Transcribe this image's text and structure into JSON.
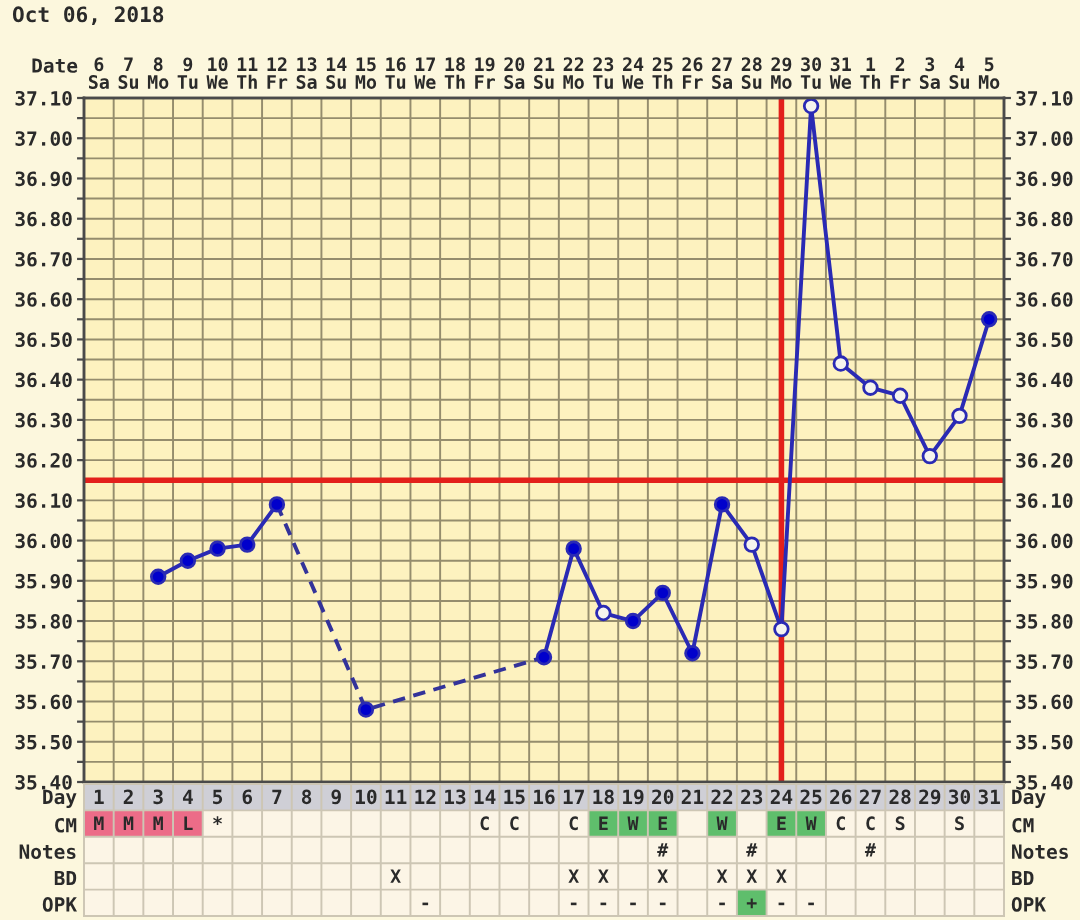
{
  "chart_data": [
    {
      "type": "line",
      "title": "Oct 06, 2018",
      "xlabel": "Date",
      "categories": [
        "6 Sa",
        "7 Su",
        "8 Mo",
        "9 Tu",
        "10 We",
        "11 Th",
        "12 Fr",
        "13 Sa",
        "14 Su",
        "15 Mo",
        "16 Tu",
        "17 We",
        "18 Th",
        "19 Fr",
        "20 Sa",
        "21 Su",
        "22 Mo",
        "23 Tu",
        "24 We",
        "25 Th",
        "26 Fr",
        "27 Sa",
        "28 Su",
        "29 Mo",
        "30 Tu",
        "31 We",
        "1 Th",
        "2 Fr",
        "3 Sa",
        "4 Su",
        "5 Mo"
      ],
      "series": [
        {
          "type": "line",
          "color": "#2a2ab4",
          "line_style": "solid",
          "marker": "circle",
          "values": [
            null,
            null,
            35.91,
            35.95,
            35.98,
            35.99,
            36.09,
            null,
            null,
            35.58,
            null,
            null,
            null,
            null,
            null,
            35.71,
            35.98,
            35.82,
            35.8,
            35.87,
            35.72,
            36.09,
            35.99,
            35.78,
            37.08,
            36.44,
            36.38,
            36.36,
            36.21,
            36.31,
            36.55
          ],
          "colors": [
            null,
            null,
            "#0000cc",
            "#0000cc",
            "#0000cc",
            "#0000cc",
            "#0000cc",
            null,
            null,
            "#0000cc",
            null,
            null,
            null,
            null,
            null,
            "#0000cc",
            "#0000cc",
            "#f6f4ee",
            "#0000cc",
            "#0000cc",
            "#0000cc",
            "#0000cc",
            "#f6f4ee",
            "#f6f4ee",
            "#f6f4ee",
            "#f6f4ee",
            "#f6f4ee",
            "#f6f4ee",
            "#f6f4ee",
            "#f6f4ee",
            "#0000cc"
          ]
        },
        {
          "type": "line",
          "color": "#33339a",
          "line_style": "dashed",
          "marker": "none",
          "x": [
            "12 Fr",
            "15 Mo",
            "21 Su"
          ],
          "values": [
            36.09,
            35.58,
            35.71
          ]
        }
      ],
      "ylim": [
        35.4,
        37.1
      ],
      "yticks": [
        {
          "value": 35.4,
          "label": "35.40"
        },
        {
          "value": 35.45,
          "label": null
        },
        {
          "value": 35.5,
          "label": "35.50"
        },
        {
          "value": 35.55,
          "label": null
        },
        {
          "value": 35.6,
          "label": "35.60"
        },
        {
          "value": 35.65,
          "label": null
        },
        {
          "value": 35.7,
          "label": "35.70"
        },
        {
          "value": 35.75,
          "label": null
        },
        {
          "value": 35.8,
          "label": "35.80"
        },
        {
          "value": 35.85,
          "label": null
        },
        {
          "value": 35.9,
          "label": "35.90"
        },
        {
          "value": 35.95,
          "label": null
        },
        {
          "value": 36.0,
          "label": "36.00"
        },
        {
          "value": 36.05,
          "label": null
        },
        {
          "value": 36.1,
          "label": "36.10"
        },
        {
          "value": 36.2,
          "label": "36.20"
        },
        {
          "value": 36.25,
          "label": null
        },
        {
          "value": 36.3,
          "label": "36.30"
        },
        {
          "value": 36.35,
          "label": null
        },
        {
          "value": 36.4,
          "label": "36.40"
        },
        {
          "value": 36.45,
          "label": null
        },
        {
          "value": 36.5,
          "label": "36.50"
        },
        {
          "value": 36.55,
          "label": null
        },
        {
          "value": 36.6,
          "label": "36.60"
        },
        {
          "value": 36.65,
          "label": null
        },
        {
          "value": 36.7,
          "label": "36.70"
        },
        {
          "value": 36.75,
          "label": null
        },
        {
          "value": 36.8,
          "label": "36.80"
        },
        {
          "value": 36.85,
          "label": null
        },
        {
          "value": 36.9,
          "label": "36.90"
        },
        {
          "value": 36.95,
          "label": null
        },
        {
          "value": 37.0,
          "label": "37.00"
        },
        {
          "value": 37.05,
          "label": null
        },
        {
          "value": 37.1,
          "label": "37.10"
        }
      ],
      "y2lim": [
        35.4,
        37.1
      ],
      "y2ticks": [
        {
          "value": 35.4,
          "label": "35.40"
        },
        {
          "value": 35.45,
          "label": null
        },
        {
          "value": 35.5,
          "label": "35.50"
        },
        {
          "value": 35.55,
          "label": null
        },
        {
          "value": 35.6,
          "label": "35.60"
        },
        {
          "value": 35.65,
          "label": null
        },
        {
          "value": 35.7,
          "label": "35.70"
        },
        {
          "value": 35.75,
          "label": null
        },
        {
          "value": 35.8,
          "label": "35.80"
        },
        {
          "value": 35.85,
          "label": null
        },
        {
          "value": 35.9,
          "label": "35.90"
        },
        {
          "value": 35.95,
          "label": null
        },
        {
          "value": 36.0,
          "label": "36.00"
        },
        {
          "value": 36.05,
          "label": null
        },
        {
          "value": 36.1,
          "label": "36.10"
        },
        {
          "value": 36.2,
          "label": "36.20"
        },
        {
          "value": 36.25,
          "label": null
        },
        {
          "value": 36.3,
          "label": "36.30"
        },
        {
          "value": 36.35,
          "label": null
        },
        {
          "value": 36.4,
          "label": "36.40"
        },
        {
          "value": 36.45,
          "label": null
        },
        {
          "value": 36.5,
          "label": "36.50"
        },
        {
          "value": 36.55,
          "label": null
        },
        {
          "value": 36.6,
          "label": "36.60"
        },
        {
          "value": 36.65,
          "label": null
        },
        {
          "value": 36.7,
          "label": "36.70"
        },
        {
          "value": 36.75,
          "label": null
        },
        {
          "value": 36.8,
          "label": "36.80"
        },
        {
          "value": 36.85,
          "label": null
        },
        {
          "value": 36.9,
          "label": "36.90"
        },
        {
          "value": 36.95,
          "label": null
        },
        {
          "value": 37.0,
          "label": "37.00"
        },
        {
          "value": 37.05,
          "label": null
        },
        {
          "value": 37.1,
          "label": "37.10"
        }
      ],
      "grid": true,
      "ref_lines": [
        {
          "axis": "y",
          "value": 36.15,
          "color": "#e3201b"
        },
        {
          "axis": "x",
          "value": "29 Mo",
          "color": "#e3201b"
        }
      ]
    },
    {
      "type": "heatmap",
      "xlabel": "Day",
      "categories": [
        "1",
        "2",
        "3",
        "4",
        "5",
        "6",
        "7",
        "8",
        "9",
        "10",
        "11",
        "12",
        "13",
        "14",
        "15",
        "16",
        "17",
        "18",
        "19",
        "20",
        "21",
        "22",
        "23",
        "24",
        "25",
        "26",
        "27",
        "28",
        "29",
        "30",
        "31"
      ],
      "y_categories": [
        "CM",
        "Notes",
        "BD",
        "OPK"
      ],
      "y2_categories": [
        "CM",
        "Notes",
        "BD",
        "OPK"
      ],
      "cells": [
        [
          null,
          null,
          null,
          null,
          null,
          null,
          null,
          null,
          null,
          null,
          null,
          null,
          null,
          null,
          null,
          null,
          null,
          null,
          null,
          null,
          null,
          null,
          null,
          null,
          null,
          null,
          null,
          null,
          null,
          null,
          null
        ],
        [
          null,
          null,
          null,
          null,
          null,
          null,
          null,
          null,
          null,
          null,
          null,
          null,
          null,
          null,
          null,
          null,
          null,
          null,
          null,
          null,
          null,
          null,
          null,
          null,
          null,
          null,
          null,
          null,
          null,
          null,
          null
        ],
        [
          null,
          null,
          null,
          null,
          null,
          null,
          null,
          null,
          null,
          null,
          null,
          null,
          null,
          null,
          null,
          null,
          null,
          null,
          null,
          null,
          null,
          null,
          null,
          null,
          null,
          null,
          null,
          null,
          null,
          null,
          null
        ],
        [
          null,
          null,
          null,
          null,
          null,
          null,
          null,
          null,
          null,
          null,
          null,
          null,
          null,
          null,
          null,
          null,
          null,
          null,
          null,
          null,
          null,
          null,
          null,
          null,
          null,
          null,
          null,
          null,
          null,
          null,
          null
        ]
      ],
      "cell_labels": [
        [
          "M",
          "M",
          "M",
          "L",
          "*",
          null,
          null,
          null,
          null,
          null,
          null,
          null,
          null,
          "C",
          "C",
          null,
          "C",
          "E",
          "W",
          "E",
          null,
          "W",
          null,
          "E",
          "W",
          "C",
          "C",
          "S",
          null,
          "S",
          null
        ],
        [
          null,
          null,
          null,
          null,
          null,
          null,
          null,
          null,
          null,
          null,
          null,
          null,
          null,
          null,
          null,
          null,
          null,
          null,
          null,
          "#",
          null,
          null,
          "#",
          null,
          null,
          null,
          "#",
          null,
          null,
          null,
          null
        ],
        [
          null,
          null,
          null,
          null,
          null,
          null,
          null,
          null,
          null,
          null,
          "X",
          null,
          null,
          null,
          null,
          null,
          "X",
          "X",
          null,
          "X",
          null,
          "X",
          "X",
          "X",
          null,
          null,
          null,
          null,
          null,
          null,
          null
        ],
        [
          null,
          null,
          null,
          null,
          null,
          null,
          null,
          null,
          null,
          null,
          null,
          "-",
          null,
          null,
          null,
          null,
          "-",
          "-",
          "-",
          "-",
          null,
          "-",
          "+",
          "-",
          "-",
          null,
          null,
          null,
          null,
          null,
          null
        ]
      ],
      "colors": [
        [
          "#ec6c88",
          "#ec6c88",
          "#ec6c88",
          "#ec6c88",
          null,
          null,
          null,
          null,
          null,
          null,
          null,
          null,
          null,
          null,
          null,
          null,
          null,
          "#5fbe6c",
          "#5fbe6c",
          "#5fbe6c",
          null,
          "#5fbe6c",
          null,
          "#5fbe6c",
          "#5fbe6c",
          null,
          null,
          null,
          null,
          null,
          null
        ],
        [
          null,
          null,
          null,
          null,
          null,
          null,
          null,
          null,
          null,
          null,
          null,
          null,
          null,
          null,
          null,
          null,
          null,
          null,
          null,
          null,
          null,
          null,
          null,
          null,
          null,
          null,
          null,
          null,
          null,
          null,
          null
        ],
        [
          null,
          null,
          null,
          null,
          null,
          null,
          null,
          null,
          null,
          null,
          null,
          null,
          null,
          null,
          null,
          null,
          null,
          null,
          null,
          null,
          null,
          null,
          null,
          null,
          null,
          null,
          null,
          null,
          null,
          null,
          null
        ],
        [
          null,
          null,
          null,
          null,
          null,
          null,
          null,
          null,
          null,
          null,
          null,
          null,
          null,
          null,
          null,
          null,
          null,
          null,
          null,
          null,
          null,
          null,
          "#5fbe6c",
          null,
          null,
          null,
          null,
          null,
          null,
          null,
          null
        ]
      ]
    }
  ]
}
